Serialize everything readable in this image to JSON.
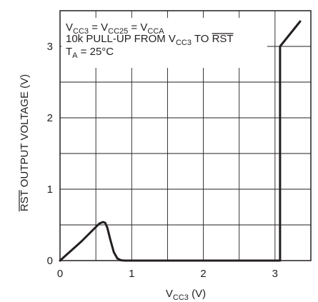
{
  "chart_data": {
    "type": "line",
    "xlabel": "V",
    "xlabel_sub": "CC3",
    "xlabel_unit": " (V)",
    "ylabel_over": "RST",
    "ylabel_rest": " OUTPUT VOLTAGE (V)",
    "xlim": [
      0,
      3.5
    ],
    "ylim": [
      0,
      3.5
    ],
    "x_ticks": [
      0,
      1,
      2,
      3
    ],
    "y_ticks": [
      0,
      1,
      2,
      3
    ],
    "x_tick_labels": [
      "0",
      "1",
      "2",
      "3"
    ],
    "y_tick_labels": [
      "0",
      "1",
      "2",
      "3"
    ],
    "grid": true,
    "annotations": {
      "line1": {
        "a": "V",
        "a_sub": "CC3",
        "b": " = V",
        "b_sub": "CC25",
        "c": " = V",
        "c_sub": "CCA"
      },
      "line2": {
        "a": "10k PULL-UP FROM V",
        "a_sub": "CC3",
        "b": " TO ",
        "over": "RST"
      },
      "line3": {
        "a": "T",
        "a_sub": "A",
        "b": " = 25°C"
      }
    },
    "series": [
      {
        "x": [
          0,
          0.1,
          0.2,
          0.3,
          0.4,
          0.5,
          0.55,
          0.6,
          0.63,
          0.66,
          0.7,
          0.75,
          0.8,
          0.85,
          0.9,
          1.0,
          2.0,
          3.07,
          3.07,
          3.35
        ],
        "y": [
          0,
          0.09,
          0.18,
          0.27,
          0.37,
          0.47,
          0.52,
          0.54,
          0.53,
          0.46,
          0.3,
          0.12,
          0.03,
          0.005,
          0,
          0,
          0,
          0,
          3.0,
          3.35
        ]
      }
    ]
  }
}
